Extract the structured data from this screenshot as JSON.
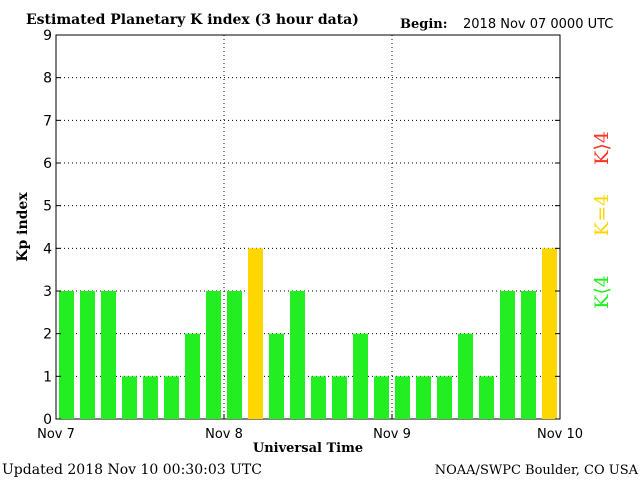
{
  "title": "Estimated Planetary K index (3 hour data)",
  "begin_label": "Begin:",
  "begin_value": "2018 Nov 07 0000 UTC",
  "updated": "Updated 2018 Nov 10 00:30:03 UTC",
  "source": "NOAA/SWPC Boulder, CO USA",
  "legend": {
    "high": "K⟩4",
    "mid": "K=4",
    "low": "K⟨4"
  },
  "colors": {
    "low": "#22ee22",
    "mid": "#ffd700",
    "high": "#ff3322"
  },
  "chart_data": {
    "type": "bar",
    "title": "Estimated Planetary K index (3 hour data)",
    "xlabel": "Universal Time",
    "ylabel": "Kp index",
    "ylim": [
      0,
      9
    ],
    "yticks": [
      "0",
      "1",
      "2",
      "3",
      "4",
      "5",
      "6",
      "7",
      "8",
      "9"
    ],
    "xticks": [
      "Nov 7",
      "Nov 8",
      "Nov 9",
      "Nov 10"
    ],
    "grid": true,
    "values": [
      3,
      3,
      3,
      1,
      1,
      1,
      2,
      3,
      3,
      4,
      2,
      3,
      1,
      1,
      2,
      1,
      1,
      1,
      1,
      2,
      1,
      3,
      3,
      4
    ]
  }
}
